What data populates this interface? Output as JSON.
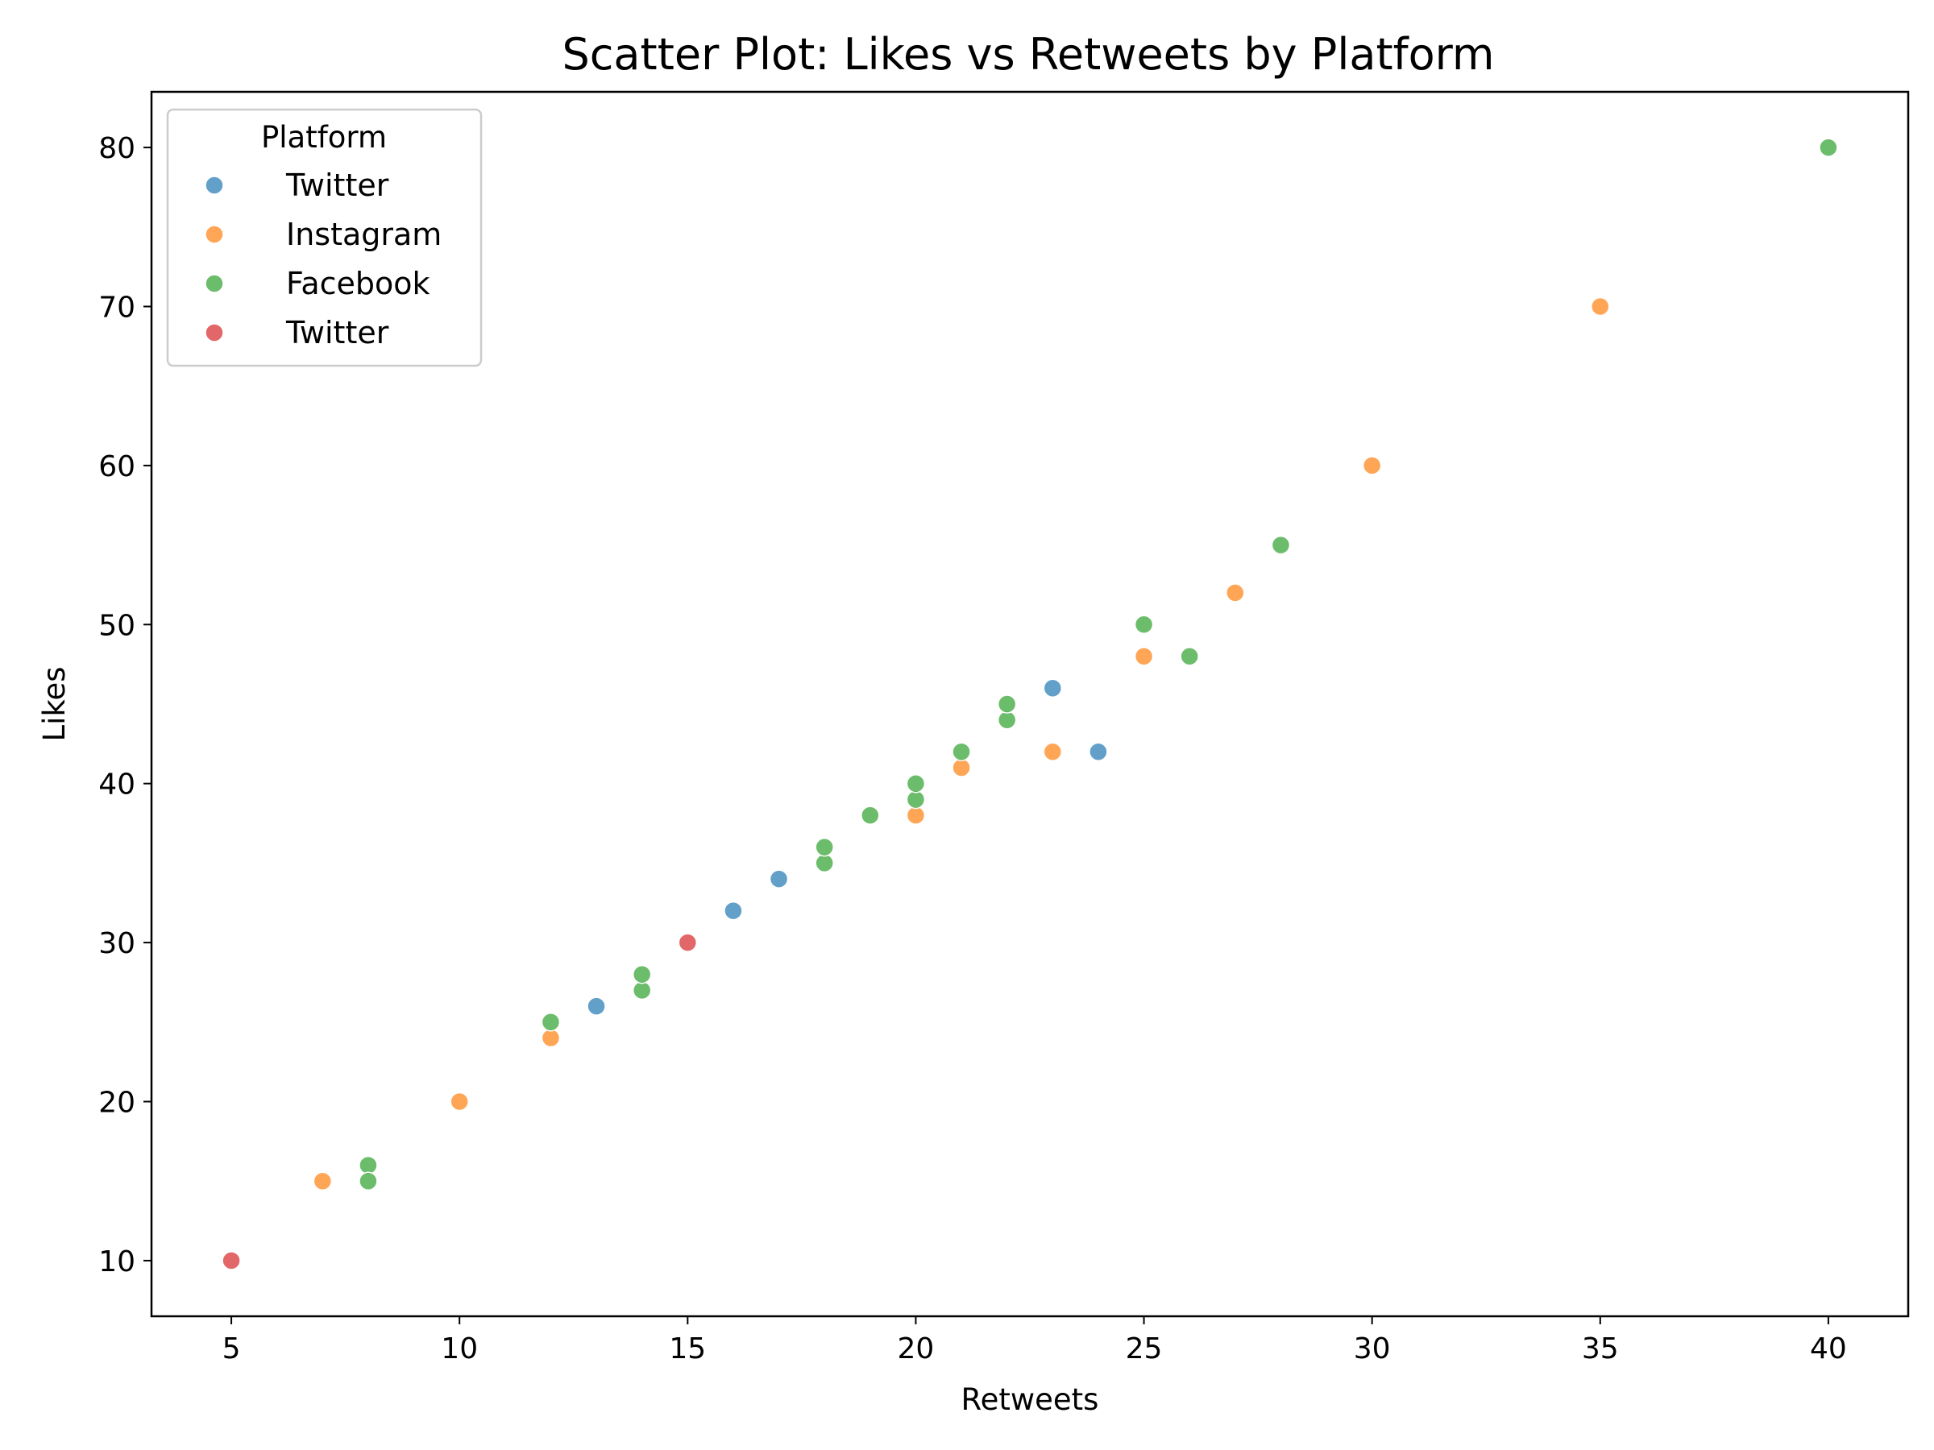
{
  "chart_data": {
    "type": "scatter",
    "title": "Scatter Plot: Likes vs Retweets by Platform",
    "xlabel": "Retweets",
    "ylabel": "Likes",
    "xlim": [
      3.25,
      41.75
    ],
    "ylim": [
      6.5,
      83.5
    ],
    "xticks": [
      5,
      10,
      15,
      20,
      25,
      30,
      35,
      40
    ],
    "yticks": [
      10,
      20,
      30,
      40,
      50,
      60,
      70,
      80
    ],
    "grid": false,
    "legend": {
      "title": "Platform",
      "placement": "top-left"
    },
    "series": [
      {
        "name": "Twitter",
        "color": "#1f77b4",
        "points": [
          [
            13,
            26
          ],
          [
            16,
            32
          ],
          [
            17,
            34
          ],
          [
            23,
            46
          ],
          [
            24,
            42
          ]
        ]
      },
      {
        "name": "Instagram",
        "color": "#ff7f0e",
        "points": [
          [
            7,
            15
          ],
          [
            10,
            20
          ],
          [
            12,
            24
          ],
          [
            20,
            38
          ],
          [
            21,
            41
          ],
          [
            23,
            42
          ],
          [
            25,
            48
          ],
          [
            27,
            52
          ],
          [
            30,
            60
          ],
          [
            35,
            70
          ]
        ]
      },
      {
        "name": "Facebook",
        "color": "#2ca02c",
        "points": [
          [
            8,
            16
          ],
          [
            8,
            15
          ],
          [
            12,
            25
          ],
          [
            14,
            27
          ],
          [
            14,
            28
          ],
          [
            18,
            35
          ],
          [
            18,
            36
          ],
          [
            19,
            38
          ],
          [
            20,
            39
          ],
          [
            20,
            40
          ],
          [
            21,
            42
          ],
          [
            22,
            44
          ],
          [
            22,
            45
          ],
          [
            25,
            50
          ],
          [
            26,
            48
          ],
          [
            28,
            55
          ],
          [
            40,
            80
          ]
        ]
      },
      {
        "name": "Twitter",
        "color": "#d62728",
        "points": [
          [
            5,
            10
          ],
          [
            15,
            30
          ]
        ]
      }
    ]
  }
}
